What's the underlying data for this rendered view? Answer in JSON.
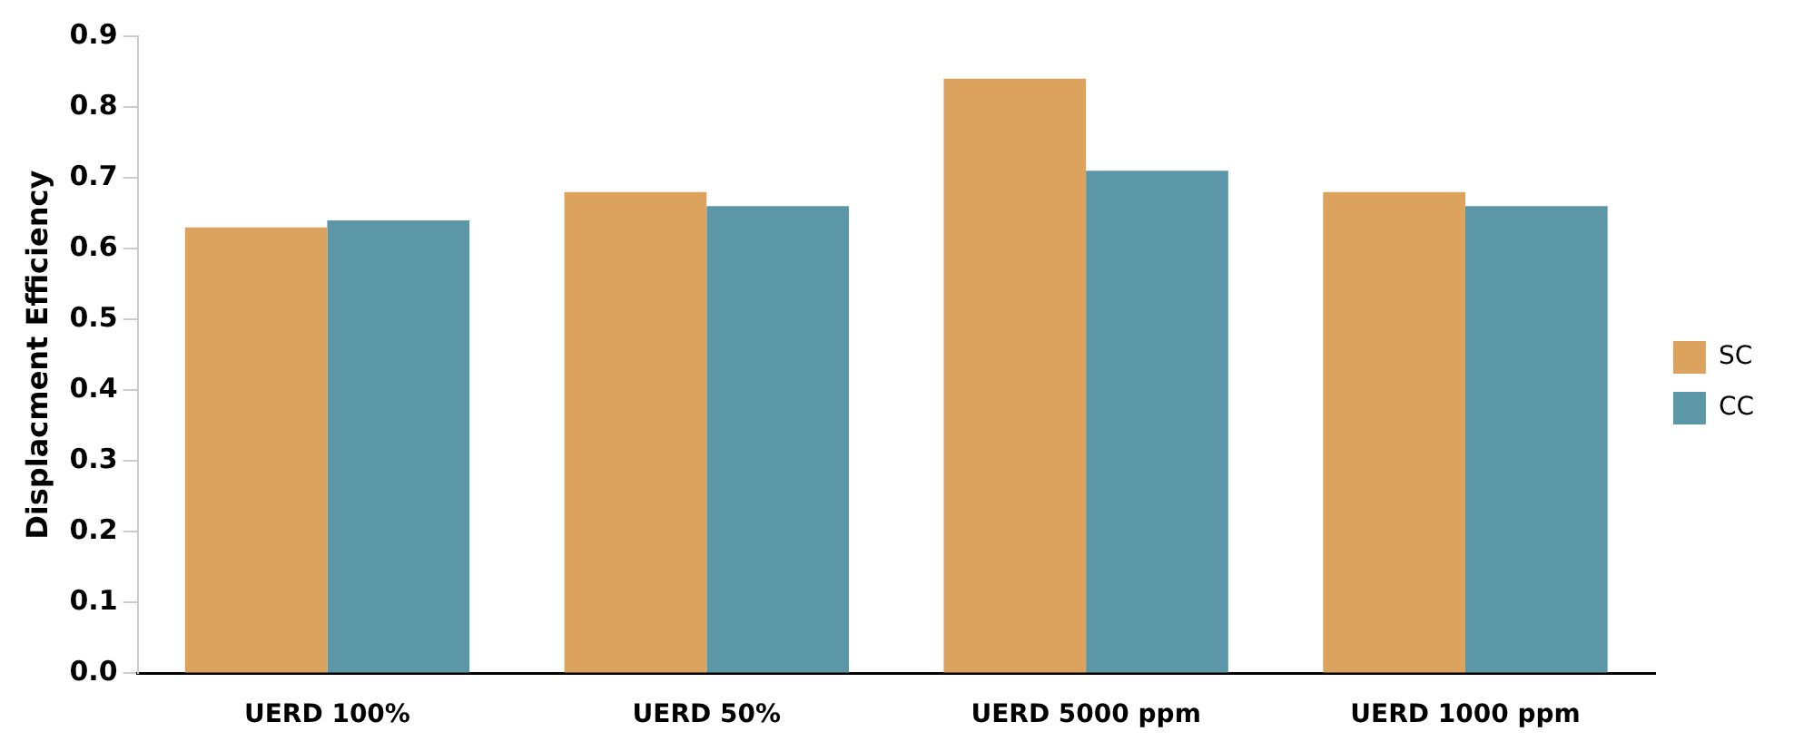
{
  "chart_data": {
    "type": "bar",
    "ylabel": "Displacment Efficiency",
    "categories": [
      "UERD 100%",
      "UERD 50%",
      "UERD 5000 ppm",
      "UERD 1000 ppm"
    ],
    "series": [
      {
        "name": "SC",
        "color": "#dba35e",
        "values": [
          0.63,
          0.68,
          0.84,
          0.68
        ]
      },
      {
        "name": "CC",
        "color": "#5b97a6",
        "values": [
          0.64,
          0.66,
          0.71,
          0.66
        ]
      }
    ],
    "ylim": [
      0,
      0.9
    ],
    "yticks": [
      {
        "value": 0,
        "label": "0.0"
      },
      0.1,
      0.2,
      0.3,
      0.4,
      0.5,
      0.6,
      0.7,
      0.8,
      0.9
    ],
    "grid": false,
    "legend": "right"
  }
}
